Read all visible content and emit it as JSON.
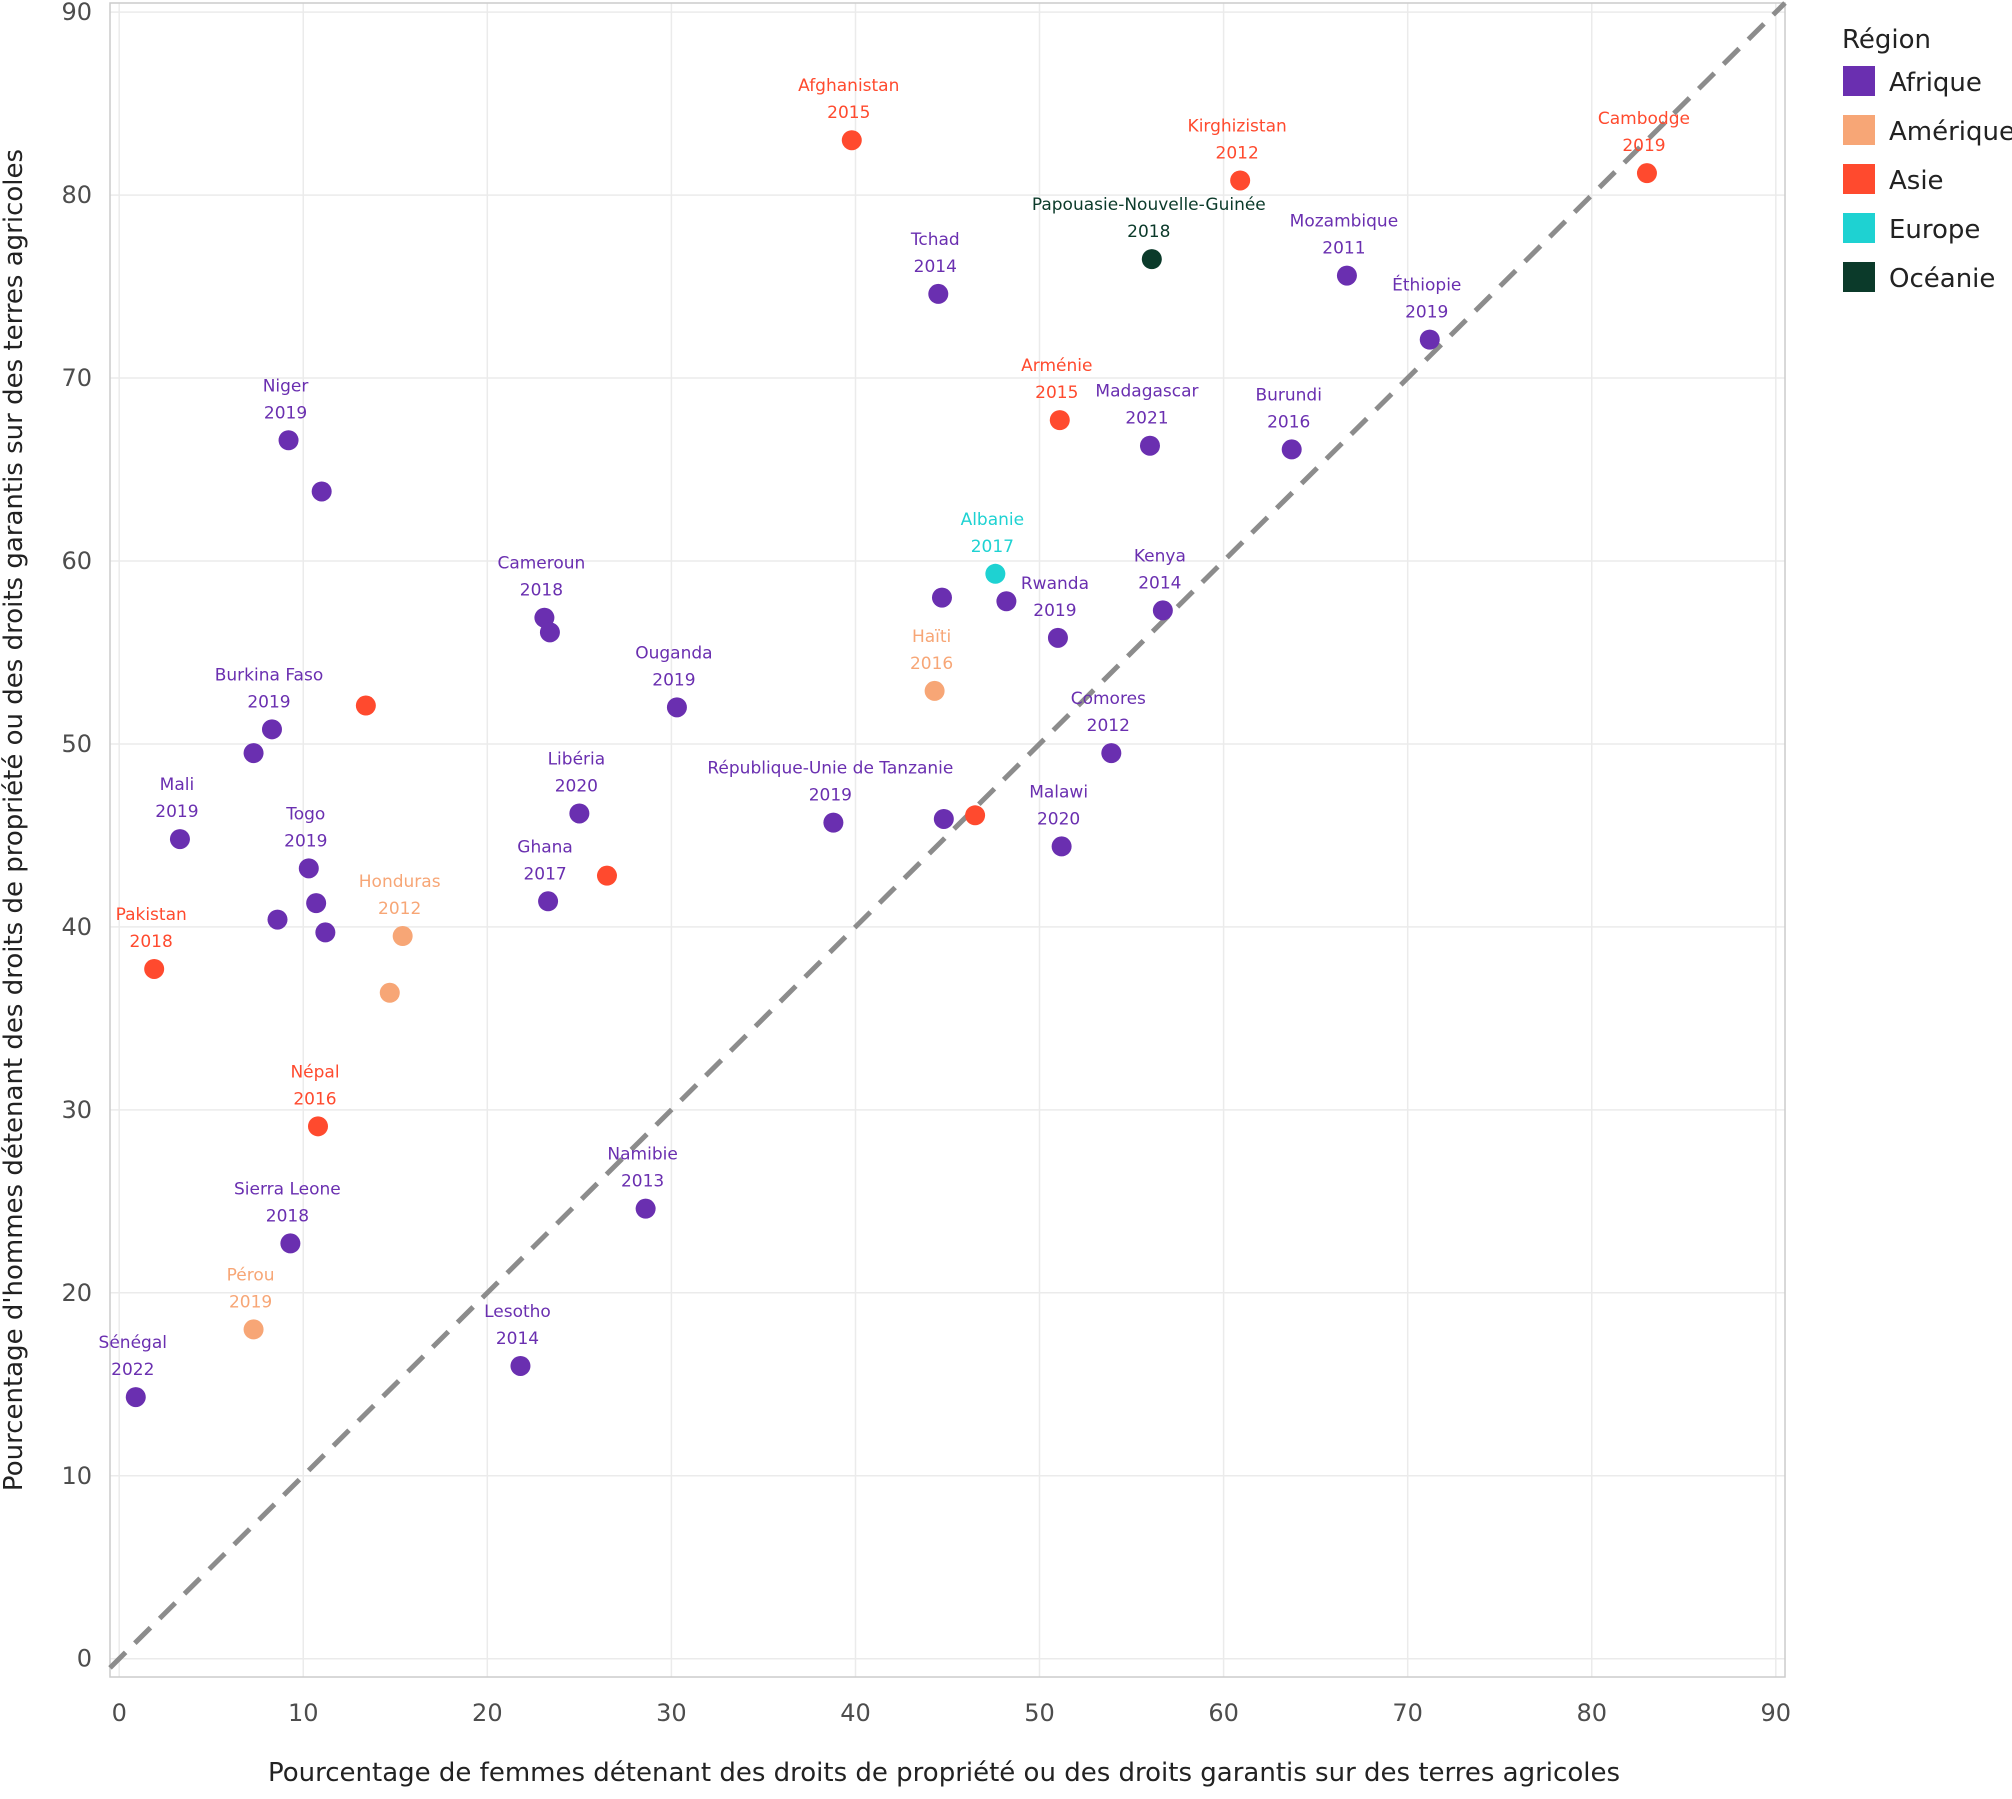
{
  "chart_data": {
    "type": "scatter",
    "xlabel": "Pourcentage de femmes détenant des droits de propriété ou des droits garantis sur des terres agricoles",
    "ylabel": "Pourcentage d'hommes détenant des droits de propriété ou des droits garantis sur des terres agricoles",
    "xlim": [
      -0.5,
      90.5
    ],
    "ylim": [
      -1,
      90.5
    ],
    "xticks": [
      0,
      10,
      20,
      30,
      40,
      50,
      60,
      70,
      80,
      90
    ],
    "yticks": [
      0,
      10,
      20,
      30,
      40,
      50,
      60,
      70,
      80,
      90
    ],
    "grid": true,
    "reference_line": "y = x (dashed)",
    "legend": {
      "title": "Région",
      "placement": "right",
      "items": [
        {
          "name": "Afrique",
          "color": "#6a2fb0"
        },
        {
          "name": "Amérique",
          "color": "#f7a676"
        },
        {
          "name": "Asie",
          "color": "#ff4a2e"
        },
        {
          "name": "Europe",
          "color": "#1ed2d2"
        },
        {
          "name": "Océanie",
          "color": "#0b3a2a"
        }
      ]
    },
    "points": [
      {
        "region": "Asie",
        "x": 39.8,
        "y": 83.0,
        "name": "Afghanistan",
        "year": "2015"
      },
      {
        "region": "Asie",
        "x": 60.9,
        "y": 80.8,
        "name": "Kirghizistan",
        "year": "2012"
      },
      {
        "region": "Asie",
        "x": 83.0,
        "y": 81.2,
        "name": "Cambodge",
        "year": "2019"
      },
      {
        "region": "Océanie",
        "x": 56.1,
        "y": 76.5,
        "name": "Papouasie-Nouvelle-Guinée",
        "year": "2018"
      },
      {
        "region": "Afrique",
        "x": 44.5,
        "y": 74.6,
        "name": "Tchad",
        "year": "2014"
      },
      {
        "region": "Afrique",
        "x": 66.7,
        "y": 75.6,
        "name": "Mozambique",
        "year": "2011"
      },
      {
        "region": "Afrique",
        "x": 71.2,
        "y": 72.1,
        "name": "Éthiopie",
        "year": "2019"
      },
      {
        "region": "Asie",
        "x": 51.1,
        "y": 67.7,
        "name": "Arménie",
        "year": "2015"
      },
      {
        "region": "Afrique",
        "x": 56.0,
        "y": 66.3,
        "name": "Madagascar",
        "year": "2021"
      },
      {
        "region": "Afrique",
        "x": 63.7,
        "y": 66.1,
        "name": "Burundi",
        "year": "2016"
      },
      {
        "region": "Afrique",
        "x": 9.2,
        "y": 66.6,
        "name": "Niger",
        "year": "2019"
      },
      {
        "region": "Afrique",
        "x": 11.0,
        "y": 63.8
      },
      {
        "region": "Europe",
        "x": 47.6,
        "y": 59.3,
        "name": "Albanie",
        "year": "2017"
      },
      {
        "region": "Afrique",
        "x": 44.7,
        "y": 58.0
      },
      {
        "region": "Afrique",
        "x": 48.2,
        "y": 57.8
      },
      {
        "region": "Afrique",
        "x": 56.7,
        "y": 57.3,
        "name": "Kenya",
        "year": "2014"
      },
      {
        "region": "Afrique",
        "x": 51.0,
        "y": 55.8,
        "name": "Rwanda",
        "year": "2019"
      },
      {
        "region": "Afrique",
        "x": 23.1,
        "y": 56.9,
        "name": "Cameroun",
        "year": "2018"
      },
      {
        "region": "Afrique",
        "x": 23.4,
        "y": 56.1
      },
      {
        "region": "Amérique",
        "x": 44.3,
        "y": 52.9,
        "name": "Haïti",
        "year": "2016"
      },
      {
        "region": "Afrique",
        "x": 30.3,
        "y": 52.0,
        "name": "Ouganda",
        "year": "2019"
      },
      {
        "region": "Asie",
        "x": 13.4,
        "y": 52.1
      },
      {
        "region": "Afrique",
        "x": 8.3,
        "y": 50.8,
        "name": "Burkina Faso",
        "year": "2019"
      },
      {
        "region": "Afrique",
        "x": 7.3,
        "y": 49.5
      },
      {
        "region": "Afrique",
        "x": 53.9,
        "y": 49.5,
        "name": "Comores",
        "year": "2012"
      },
      {
        "region": "Afrique",
        "x": 25.0,
        "y": 46.2,
        "name": "Libéria",
        "year": "2020"
      },
      {
        "region": "Afrique",
        "x": 38.8,
        "y": 45.7,
        "name": "République-Unie de Tanzanie",
        "year": "2019"
      },
      {
        "region": "Afrique",
        "x": 44.8,
        "y": 45.9
      },
      {
        "region": "Asie",
        "x": 46.5,
        "y": 46.1
      },
      {
        "region": "Afrique",
        "x": 51.2,
        "y": 44.4,
        "name": "Malawi",
        "year": "2020"
      },
      {
        "region": "Afrique",
        "x": 3.3,
        "y": 44.8,
        "name": "Mali",
        "year": "2019"
      },
      {
        "region": "Afrique",
        "x": 10.3,
        "y": 43.2,
        "name": "Togo",
        "year": "2019"
      },
      {
        "region": "Asie",
        "x": 26.5,
        "y": 42.8
      },
      {
        "region": "Afrique",
        "x": 23.3,
        "y": 41.4,
        "name": "Ghana",
        "year": "2017"
      },
      {
        "region": "Afrique",
        "x": 10.7,
        "y": 41.3
      },
      {
        "region": "Afrique",
        "x": 8.6,
        "y": 40.4
      },
      {
        "region": "Afrique",
        "x": 11.2,
        "y": 39.7
      },
      {
        "region": "Amérique",
        "x": 15.4,
        "y": 39.5,
        "name": "Honduras",
        "year": "2012"
      },
      {
        "region": "Asie",
        "x": 1.9,
        "y": 37.7,
        "name": "Pakistan",
        "year": "2018"
      },
      {
        "region": "Amérique",
        "x": 14.7,
        "y": 36.4
      },
      {
        "region": "Asie",
        "x": 10.8,
        "y": 29.1,
        "name": "Népal",
        "year": "2016"
      },
      {
        "region": "Afrique",
        "x": 28.6,
        "y": 24.6,
        "name": "Namibie",
        "year": "2013"
      },
      {
        "region": "Afrique",
        "x": 9.3,
        "y": 22.7,
        "name": "Sierra Leone",
        "year": "2018"
      },
      {
        "region": "Amérique",
        "x": 7.3,
        "y": 18.0,
        "name": "Pérou",
        "year": "2019"
      },
      {
        "region": "Afrique",
        "x": 21.8,
        "y": 16.0,
        "name": "Lesotho",
        "year": "2014"
      },
      {
        "region": "Afrique",
        "x": 0.9,
        "y": 14.3,
        "name": "Sénégal",
        "year": "2022"
      }
    ]
  }
}
